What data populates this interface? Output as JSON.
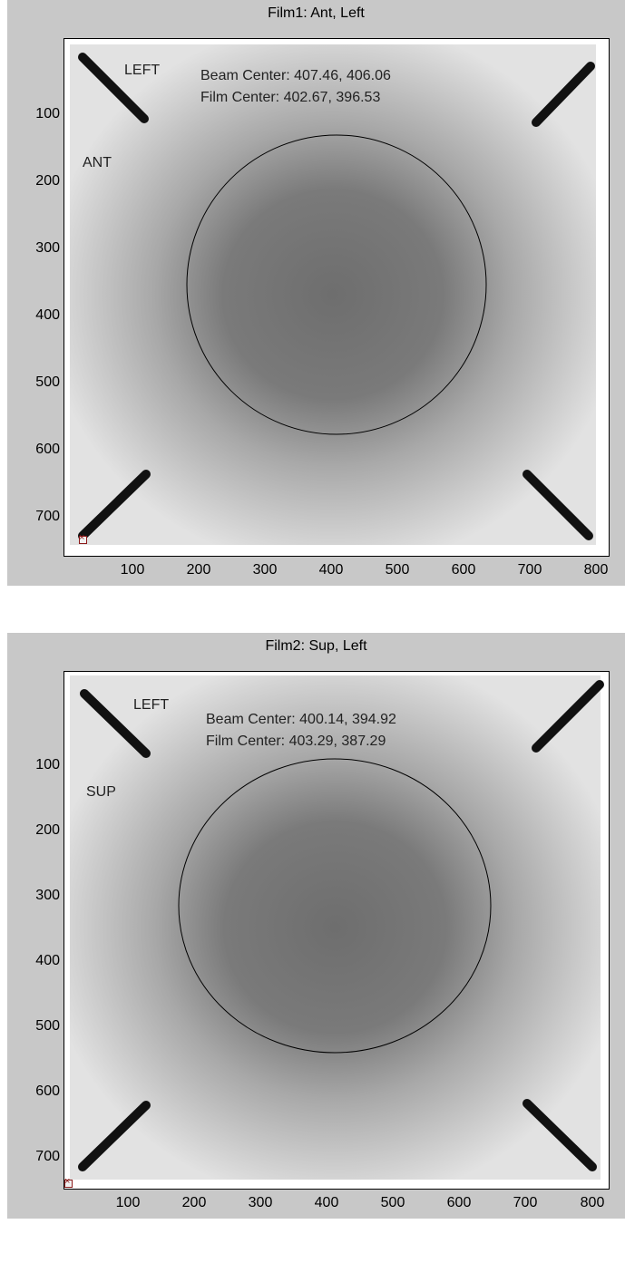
{
  "colors": {
    "figure_bg": "#c8c8c8",
    "film_light": "#e4e4e4",
    "film_dark": "#6e6e6e",
    "fiducial": "#111111",
    "contour": "#000000",
    "marker": "#8b1a1a"
  },
  "panels": [
    {
      "title": "Film1: Ant, Left",
      "beam_center": "Beam Center: 407.46, 406.06",
      "film_center": "Film Center: 402.67, 396.53",
      "label_lateral": "LEFT",
      "label_vertical": "ANT",
      "x_ticks": [
        "100",
        "200",
        "300",
        "400",
        "500",
        "600",
        "700",
        "800"
      ],
      "y_ticks": [
        "100",
        "200",
        "300",
        "400",
        "500",
        "600",
        "700"
      ],
      "marker_icon": "square-marker-icon"
    },
    {
      "title": "Film2: Sup, Left",
      "beam_center": "Beam Center: 400.14, 394.92",
      "film_center": "Film Center: 403.29, 387.29",
      "label_lateral": "LEFT",
      "label_vertical": "SUP",
      "x_ticks": [
        "100",
        "200",
        "300",
        "400",
        "500",
        "600",
        "700",
        "800"
      ],
      "y_ticks": [
        "100",
        "200",
        "300",
        "400",
        "500",
        "600",
        "700"
      ],
      "marker_icon": "square-marker-icon"
    }
  ]
}
